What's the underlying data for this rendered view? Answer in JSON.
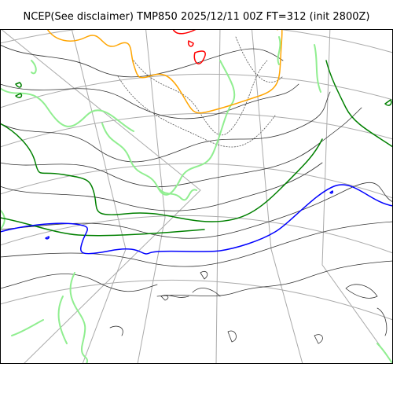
{
  "header": {
    "title": "NCEP(See disclaimer) TMP850 2025/12/11 00Z FT=312 (init 2800Z)"
  },
  "map": {
    "colors": {
      "coastline": "#90ee90",
      "grid": "#aaaaaa",
      "isotherm": "#333333",
      "isotherm_dotted": "#555555",
      "contour_orange": "#ffa500",
      "contour_red": "#ff0000",
      "contour_green": "#008000",
      "contour_blue": "#0000ff",
      "frame": "#000000"
    },
    "features": [
      "graticule",
      "coastline",
      "isotherms",
      "highlighted-isotherms"
    ]
  }
}
